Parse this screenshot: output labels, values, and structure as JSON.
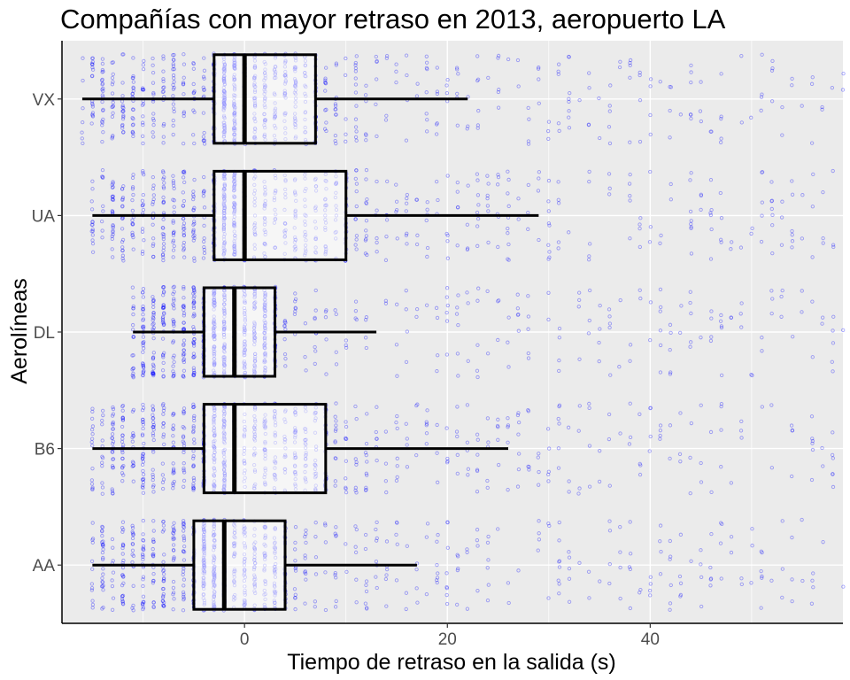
{
  "chart_data": {
    "type": "box",
    "title": "Compañías con mayor retraso en 2013, aeropuerto LA",
    "xlabel": "Tiempo de retraso en la salida (s)",
    "ylabel": "Aerolíneas",
    "xlim": [
      -18,
      59
    ],
    "x_ticks": [
      0,
      20,
      40
    ],
    "categories": [
      "AA",
      "B6",
      "DL",
      "UA",
      "VX"
    ],
    "boxes": [
      {
        "name": "AA",
        "whisker_low": -15,
        "q1": -5,
        "median": -2,
        "q3": 4,
        "whisker_high": 17
      },
      {
        "name": "B6",
        "whisker_low": -15,
        "q1": -4,
        "median": -1,
        "q3": 8,
        "whisker_high": 26
      },
      {
        "name": "DL",
        "whisker_low": -11,
        "q1": -4,
        "median": -1,
        "q3": 3,
        "whisker_high": 13
      },
      {
        "name": "UA",
        "whisker_low": -15,
        "q1": -3,
        "median": 0,
        "q3": 10,
        "whisker_high": 29
      },
      {
        "name": "VX",
        "whisker_low": -16,
        "q1": -3,
        "median": 0,
        "q3": 7,
        "whisker_high": 22
      }
    ],
    "jitter_points": {
      "color": "#0000ff",
      "opacity": 0.35,
      "shape": "circle"
    },
    "grid": true,
    "legend": "none"
  },
  "colors": {
    "panel_background": "#ebebeb",
    "grid": "#ffffff",
    "box_fill": "#ffffff",
    "box_stroke": "#000000",
    "points": "#0000ff"
  }
}
